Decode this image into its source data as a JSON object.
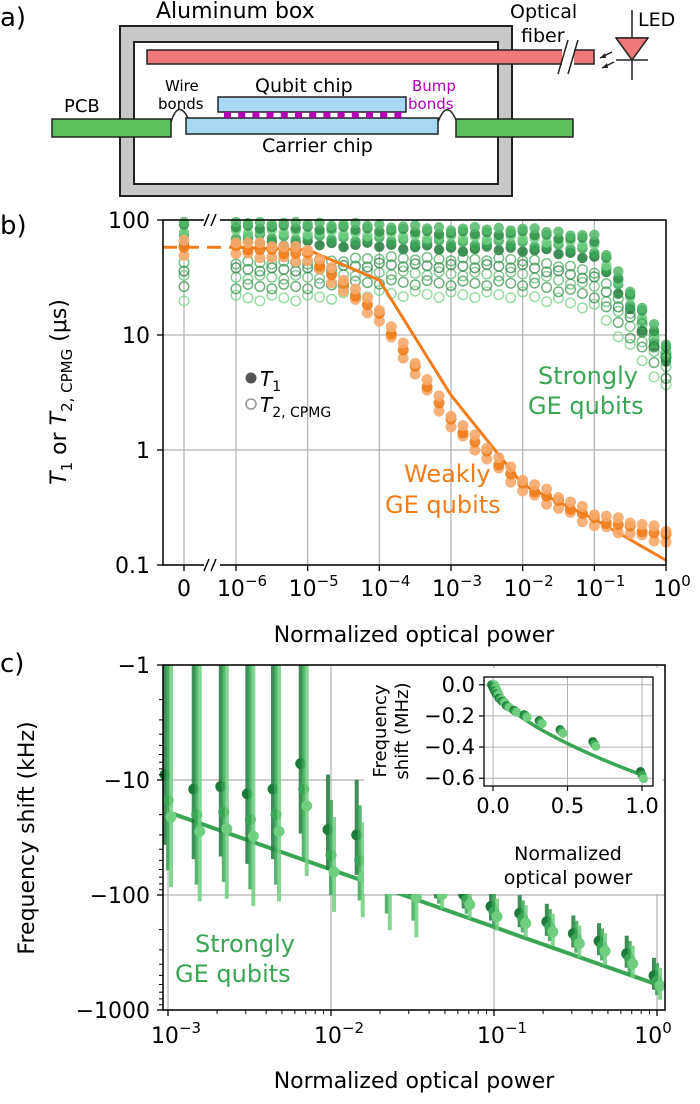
{
  "panel_a": {
    "label": "a)",
    "box_label": "Aluminum box",
    "fiber_label_1": "Optical",
    "fiber_label_2": "fiber",
    "led_label": "LED",
    "pcb_label": "PCB",
    "wire_label_1": "Wire",
    "wire_label_2": "bonds",
    "qubit_label": "Qubit chip",
    "bump_label_1": "Bump",
    "bump_label_2": "bonds",
    "carrier_label": "Carrier chip"
  },
  "colors": {
    "strong": "#3aa655",
    "strong_dark": "#1e7a3a",
    "strong_light": "#6fcf7f",
    "weak": "#f07d1a",
    "weak_light": "#f7a86a",
    "pcb": "#5cbf5c",
    "fiber": "#f07878",
    "bump": "#b000b0",
    "chip": "#a9d8f5"
  },
  "chart_data": [
    {
      "type": "scatter",
      "panel_label": "b)",
      "xlabel": "Normalized optical power",
      "ylabel": "T1 or T2,CPMG (μs)",
      "ylabel_parts": {
        "t": "T",
        "one": "1",
        "or": " or ",
        "two": "2, CPMG",
        "unit": " (μs)"
      },
      "xscale": "log with break at 0",
      "yscale": "log",
      "ylim": [
        0.1,
        100
      ],
      "xlim": [
        1e-06,
        1
      ],
      "x_tick_labels": [
        {
          "base": "0",
          "exp": ""
        },
        {
          "base": "10",
          "exp": "−6"
        },
        {
          "base": "10",
          "exp": "−5"
        },
        {
          "base": "10",
          "exp": "−4"
        },
        {
          "base": "10",
          "exp": "−3"
        },
        {
          "base": "10",
          "exp": "−2"
        },
        {
          "base": "10",
          "exp": "−1"
        },
        {
          "base": "10",
          "exp": "0"
        }
      ],
      "y_tick_labels": [
        "100",
        "10",
        "1",
        "0.1"
      ],
      "legend": {
        "t1_base": "T",
        "t1_sub": "1",
        "t2_base": "T",
        "t2_sub": "2, CPMG"
      },
      "annotations": {
        "strong_1": "Strongly",
        "strong_2": "GE qubits",
        "weak_1": "Weakly",
        "weak_2": "GE qubits"
      },
      "series": [
        {
          "group": "strong",
          "measure": "T1",
          "x": [
            0,
            1e-06,
            1e-05,
            0.0001,
            0.001,
            0.01,
            0.1,
            1
          ],
          "y": [
            80,
            80,
            78,
            75,
            70,
            70,
            60,
            7
          ]
        },
        {
          "group": "strong",
          "measure": "T2",
          "x": [
            0,
            1e-06,
            1e-05,
            0.0001,
            0.001,
            0.01,
            0.1,
            1
          ],
          "y": [
            30,
            30,
            30,
            33,
            32,
            32,
            25,
            5
          ]
        },
        {
          "group": "weak",
          "measure": "T1",
          "x": [
            0,
            1e-06,
            1e-05,
            0.0001,
            0.001,
            0.01,
            0.1,
            1
          ],
          "y": [
            58,
            58,
            50,
            15,
            1.8,
            0.5,
            0.25,
            0.18
          ]
        },
        {
          "group": "weak",
          "fit": true,
          "x": [
            1e-06,
            1e-05,
            0.0001,
            0.001,
            0.01,
            0.1,
            1
          ],
          "y": [
            58,
            55,
            30,
            3,
            0.5,
            0.25,
            0.11
          ]
        }
      ]
    },
    {
      "type": "scatter",
      "panel_label": "c)",
      "xlabel": "Normalized optical power",
      "ylabel": "Frequency shift (kHz)",
      "yscale": "symlog (negative log)",
      "ylim": [
        -1000,
        -1
      ],
      "xlim": [
        0.001,
        1
      ],
      "x_tick_labels": [
        {
          "base": "10",
          "exp": "−3"
        },
        {
          "base": "10",
          "exp": "−2"
        },
        {
          "base": "10",
          "exp": "−1"
        },
        {
          "base": "10",
          "exp": "0"
        }
      ],
      "y_tick_labels": [
        "−1",
        "−10",
        "−100",
        "−1000"
      ],
      "annotation_1": "Strongly",
      "annotation_2": "GE qubits",
      "fit": {
        "x": [
          0.001,
          1
        ],
        "y": [
          -19,
          -600
        ]
      },
      "points": [
        {
          "x": 0.001,
          "y": -15
        },
        {
          "x": 0.0015,
          "y": -20
        },
        {
          "x": 0.0022,
          "y": -19
        },
        {
          "x": 0.0032,
          "y": -22
        },
        {
          "x": 0.0046,
          "y": -20
        },
        {
          "x": 0.0068,
          "y": -12
        },
        {
          "x": 0.01,
          "y": -45
        },
        {
          "x": 0.015,
          "y": -50
        },
        {
          "x": 0.022,
          "y": -65
        },
        {
          "x": 0.032,
          "y": -75
        },
        {
          "x": 0.046,
          "y": -90
        },
        {
          "x": 0.068,
          "y": -110
        },
        {
          "x": 0.1,
          "y": -140
        },
        {
          "x": 0.15,
          "y": -160
        },
        {
          "x": 0.22,
          "y": -190
        },
        {
          "x": 0.32,
          "y": -240
        },
        {
          "x": 0.46,
          "y": -280
        },
        {
          "x": 0.68,
          "y": -360
        },
        {
          "x": 1,
          "y": -560
        }
      ]
    },
    {
      "type": "scatter",
      "inset": true,
      "xlabel_1": "Normalized",
      "xlabel_2": "optical power",
      "ylabel_1": "Frequency",
      "ylabel_2": "shift (MHz)",
      "xlim": [
        0,
        1
      ],
      "ylim": [
        -0.65,
        0.05
      ],
      "x_tick_labels": [
        "0.0",
        "0.5",
        "1.0"
      ],
      "y_tick_labels": [
        "0.0",
        "−0.2",
        "−0.4",
        "−0.6"
      ],
      "x": [
        0,
        0.005,
        0.01,
        0.02,
        0.03,
        0.05,
        0.07,
        0.1,
        0.15,
        0.22,
        0.32,
        0.46,
        0.68,
        1.0
      ],
      "y": [
        0,
        -0.01,
        -0.02,
        -0.04,
        -0.06,
        -0.09,
        -0.11,
        -0.14,
        -0.17,
        -0.2,
        -0.24,
        -0.3,
        -0.38,
        -0.58
      ]
    }
  ]
}
